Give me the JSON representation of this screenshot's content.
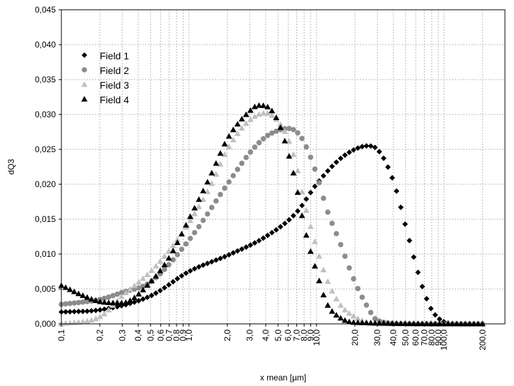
{
  "chart_data": {
    "type": "scatter",
    "xlabel": "x mean [µm]",
    "ylabel": "dQ3",
    "x_scale": "log",
    "xlim": [
      0.1,
      300
    ],
    "ylim": [
      0,
      0.045
    ],
    "grid": true,
    "legend_position": "top-left",
    "x_ticks": [
      {
        "value": 0.1,
        "label": "0,1"
      },
      {
        "value": 0.2,
        "label": "0,2"
      },
      {
        "value": 0.3,
        "label": "0,3"
      },
      {
        "value": 0.4,
        "label": "0,4"
      },
      {
        "value": 0.5,
        "label": "0,5"
      },
      {
        "value": 0.6,
        "label": "0,6"
      },
      {
        "value": 0.7,
        "label": "0,7"
      },
      {
        "value": 0.8,
        "label": "0,8"
      },
      {
        "value": 0.9,
        "label": "0,9"
      },
      {
        "value": 1.0,
        "label": "1,0"
      },
      {
        "value": 2,
        "label": "2,0"
      },
      {
        "value": 3,
        "label": "3,0"
      },
      {
        "value": 4,
        "label": "4,0"
      },
      {
        "value": 5,
        "label": "5,0"
      },
      {
        "value": 6,
        "label": "6,0"
      },
      {
        "value": 7,
        "label": "7,0"
      },
      {
        "value": 8,
        "label": "8,0"
      },
      {
        "value": 9,
        "label": "9,0"
      },
      {
        "value": 10,
        "label": "10,0"
      },
      {
        "value": 20,
        "label": "20,0"
      },
      {
        "value": 30,
        "label": "30,0"
      },
      {
        "value": 40,
        "label": "40,0"
      },
      {
        "value": 50,
        "label": "50,0"
      },
      {
        "value": 60,
        "label": "60,0"
      },
      {
        "value": 70,
        "label": "70,0"
      },
      {
        "value": 80,
        "label": "80,0"
      },
      {
        "value": 90,
        "label": "90,0"
      },
      {
        "value": 100,
        "label": "100,0"
      },
      {
        "value": 200,
        "label": "200,0"
      }
    ],
    "y_ticks": [
      {
        "value": 0.0,
        "label": "0,000"
      },
      {
        "value": 0.005,
        "label": "0,005"
      },
      {
        "value": 0.01,
        "label": "0,010"
      },
      {
        "value": 0.015,
        "label": "0,015"
      },
      {
        "value": 0.02,
        "label": "0,020"
      },
      {
        "value": 0.025,
        "label": "0,025"
      },
      {
        "value": 0.03,
        "label": "0,030"
      },
      {
        "value": 0.035,
        "label": "0,035"
      },
      {
        "value": 0.04,
        "label": "0,040"
      },
      {
        "value": 0.045,
        "label": "0,045"
      }
    ],
    "series": [
      {
        "name": "Field 1",
        "marker": "diamond",
        "color": "#000000",
        "x": [
          0.1,
          0.2,
          0.5,
          1.0,
          2.0,
          4.0,
          7.0,
          10.0,
          15.0,
          20.0,
          25.0,
          30.0,
          40.0,
          50.0,
          60.0,
          70.0,
          80.0,
          100.0,
          130.0,
          200.0
        ],
        "y": [
          0.0017,
          0.002,
          0.004,
          0.0075,
          0.0098,
          0.0125,
          0.016,
          0.02,
          0.0235,
          0.025,
          0.0255,
          0.025,
          0.0205,
          0.014,
          0.0085,
          0.0045,
          0.002,
          0.0003,
          0.0,
          0.0
        ]
      },
      {
        "name": "Field 2",
        "marker": "circle",
        "color": "#8c8c8c",
        "x": [
          0.1,
          0.2,
          0.3,
          0.5,
          1.0,
          2.0,
          3.0,
          4.0,
          5.0,
          6.0,
          7.0,
          8.0,
          10.0,
          12.0,
          15.0,
          20.0,
          25.0,
          30.0,
          50.0,
          200.0
        ],
        "y": [
          0.0028,
          0.0035,
          0.0045,
          0.006,
          0.012,
          0.02,
          0.0245,
          0.0268,
          0.0277,
          0.028,
          0.0275,
          0.026,
          0.0215,
          0.0165,
          0.012,
          0.006,
          0.0025,
          0.0005,
          0.0,
          0.0
        ]
      },
      {
        "name": "Field 3",
        "marker": "triangle",
        "color": "#c0c0c0",
        "x": [
          0.1,
          0.2,
          0.3,
          0.5,
          0.7,
          1.0,
          1.5,
          2.0,
          3.0,
          4.0,
          5.0,
          6.0,
          7.0,
          8.0,
          10.0,
          12.0,
          15.0,
          20.0,
          30.0,
          200.0
        ],
        "y": [
          0.0,
          0.001,
          0.004,
          0.0075,
          0.0105,
          0.0145,
          0.02,
          0.025,
          0.0292,
          0.0302,
          0.029,
          0.0265,
          0.0225,
          0.0175,
          0.011,
          0.0065,
          0.003,
          0.001,
          0.0,
          0.0
        ]
      },
      {
        "name": "Field 4",
        "marker": "triangle",
        "color": "#000000",
        "x": [
          0.1,
          0.15,
          0.2,
          0.3,
          0.5,
          0.7,
          1.0,
          1.5,
          2.0,
          3.0,
          3.5,
          4.0,
          5.0,
          6.0,
          7.0,
          8.0,
          10.0,
          12.0,
          15.0,
          20.0,
          200.0
        ],
        "y": [
          0.0055,
          0.004,
          0.0032,
          0.003,
          0.006,
          0.0095,
          0.015,
          0.0215,
          0.0265,
          0.0305,
          0.0313,
          0.0312,
          0.029,
          0.0245,
          0.0195,
          0.014,
          0.0075,
          0.003,
          0.001,
          0.0002,
          0.0
        ]
      }
    ]
  }
}
